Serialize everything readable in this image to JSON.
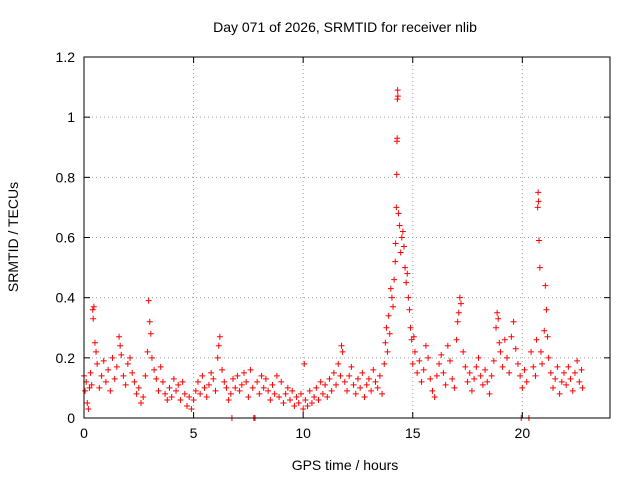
{
  "chart_data": {
    "type": "scatter",
    "title": "Day 071 of 2026, SRMTID for receiver nlib",
    "xlabel": "GPS time / hours",
    "ylabel": "SRMTID / TECUs",
    "xlim": [
      0,
      24
    ],
    "ylim": [
      0,
      1.2
    ],
    "x_ticks": [
      0,
      5,
      10,
      15,
      20
    ],
    "x_tick_labels": [
      "0",
      "5",
      "10",
      "15",
      "20"
    ],
    "y_ticks": [
      0,
      0.2,
      0.4,
      0.6,
      0.8,
      1.0,
      1.2
    ],
    "y_tick_labels": [
      "0",
      "0.2",
      "0.4",
      "0.6",
      "0.8",
      "1",
      "1.2"
    ],
    "grid": true,
    "marker": "plus",
    "series": [
      {
        "name": "SRMTID",
        "color": "#ff0000",
        "points": [
          [
            0.0,
            0.14
          ],
          [
            0.05,
            0.09
          ],
          [
            0.1,
            0.12
          ],
          [
            0.15,
            0.05
          ],
          [
            0.2,
            0.03
          ],
          [
            0.25,
            0.1
          ],
          [
            0.3,
            0.15
          ],
          [
            0.35,
            0.11
          ],
          [
            0.4,
            0.36
          ],
          [
            0.42,
            0.33
          ],
          [
            0.45,
            0.37
          ],
          [
            0.5,
            0.25
          ],
          [
            0.55,
            0.22
          ],
          [
            0.6,
            0.18
          ],
          [
            0.7,
            0.1
          ],
          [
            0.8,
            0.14
          ],
          [
            0.9,
            0.19
          ],
          [
            1.0,
            0.12
          ],
          [
            1.1,
            0.16
          ],
          [
            1.2,
            0.09
          ],
          [
            1.3,
            0.2
          ],
          [
            1.4,
            0.13
          ],
          [
            1.5,
            0.17
          ],
          [
            1.6,
            0.27
          ],
          [
            1.65,
            0.24
          ],
          [
            1.7,
            0.21
          ],
          [
            1.8,
            0.14
          ],
          [
            1.9,
            0.11
          ],
          [
            2.0,
            0.18
          ],
          [
            2.1,
            0.2
          ],
          [
            2.2,
            0.15
          ],
          [
            2.3,
            0.12
          ],
          [
            2.4,
            0.08
          ],
          [
            2.5,
            0.1
          ],
          [
            2.6,
            0.05
          ],
          [
            2.7,
            0.07
          ],
          [
            2.8,
            0.14
          ],
          [
            2.9,
            0.22
          ],
          [
            2.95,
            0.39
          ],
          [
            3.0,
            0.32
          ],
          [
            3.05,
            0.28
          ],
          [
            3.1,
            0.2
          ],
          [
            3.2,
            0.16
          ],
          [
            3.3,
            0.13
          ],
          [
            3.4,
            0.09
          ],
          [
            3.5,
            0.17
          ],
          [
            3.6,
            0.12
          ],
          [
            3.7,
            0.08
          ],
          [
            3.8,
            0.06
          ],
          [
            3.9,
            0.1
          ],
          [
            4.0,
            0.07
          ],
          [
            4.1,
            0.13
          ],
          [
            4.2,
            0.09
          ],
          [
            4.3,
            0.11
          ],
          [
            4.4,
            0.06
          ],
          [
            4.5,
            0.12
          ],
          [
            4.6,
            0.08
          ],
          [
            4.7,
            0.04
          ],
          [
            4.8,
            0.07
          ],
          [
            4.9,
            0.03
          ],
          [
            5.0,
            0.06
          ],
          [
            5.1,
            0.09
          ],
          [
            5.2,
            0.12
          ],
          [
            5.3,
            0.08
          ],
          [
            5.4,
            0.14
          ],
          [
            5.5,
            0.1
          ],
          [
            5.6,
            0.07
          ],
          [
            5.7,
            0.11
          ],
          [
            5.8,
            0.15
          ],
          [
            5.9,
            0.13
          ],
          [
            6.0,
            0.09
          ],
          [
            6.1,
            0.2
          ],
          [
            6.15,
            0.24
          ],
          [
            6.2,
            0.27
          ],
          [
            6.3,
            0.16
          ],
          [
            6.4,
            0.12
          ],
          [
            6.5,
            0.1
          ],
          [
            6.6,
            0.06
          ],
          [
            6.7,
            0.08
          ],
          [
            6.75,
            0.0
          ],
          [
            6.8,
            0.13
          ],
          [
            6.9,
            0.1
          ],
          [
            7.0,
            0.14
          ],
          [
            7.1,
            0.09
          ],
          [
            7.2,
            0.11
          ],
          [
            7.3,
            0.15
          ],
          [
            7.4,
            0.12
          ],
          [
            7.5,
            0.07
          ],
          [
            7.6,
            0.16
          ],
          [
            7.7,
            0.1
          ],
          [
            7.75,
            0.0
          ],
          [
            7.8,
            0.0
          ],
          [
            7.9,
            0.12
          ],
          [
            8.0,
            0.08
          ],
          [
            8.1,
            0.14
          ],
          [
            8.2,
            0.1
          ],
          [
            8.3,
            0.13
          ],
          [
            8.4,
            0.09
          ],
          [
            8.5,
            0.06
          ],
          [
            8.6,
            0.11
          ],
          [
            8.7,
            0.08
          ],
          [
            8.8,
            0.14
          ],
          [
            8.9,
            0.07
          ],
          [
            9.0,
            0.12
          ],
          [
            9.1,
            0.05
          ],
          [
            9.2,
            0.08
          ],
          [
            9.3,
            0.1
          ],
          [
            9.4,
            0.06
          ],
          [
            9.5,
            0.09
          ],
          [
            9.6,
            0.04
          ],
          [
            9.7,
            0.07
          ],
          [
            9.8,
            0.05
          ],
          [
            9.9,
            0.08
          ],
          [
            10.0,
            0.03
          ],
          [
            10.05,
            0.18
          ],
          [
            10.1,
            0.06
          ],
          [
            10.2,
            0.04
          ],
          [
            10.3,
            0.09
          ],
          [
            10.4,
            0.05
          ],
          [
            10.5,
            0.07
          ],
          [
            10.6,
            0.1
          ],
          [
            10.7,
            0.06
          ],
          [
            10.8,
            0.12
          ],
          [
            10.9,
            0.08
          ],
          [
            11.0,
            0.11
          ],
          [
            11.1,
            0.07
          ],
          [
            11.2,
            0.13
          ],
          [
            11.3,
            0.09
          ],
          [
            11.4,
            0.15
          ],
          [
            11.5,
            0.11
          ],
          [
            11.6,
            0.18
          ],
          [
            11.7,
            0.14
          ],
          [
            11.75,
            0.24
          ],
          [
            11.8,
            0.22
          ],
          [
            11.9,
            0.12
          ],
          [
            12.0,
            0.09
          ],
          [
            12.1,
            0.14
          ],
          [
            12.2,
            0.17
          ],
          [
            12.3,
            0.11
          ],
          [
            12.4,
            0.08
          ],
          [
            12.5,
            0.13
          ],
          [
            12.6,
            0.1
          ],
          [
            12.7,
            0.15
          ],
          [
            12.8,
            0.07
          ],
          [
            12.9,
            0.11
          ],
          [
            13.0,
            0.13
          ],
          [
            13.1,
            0.09
          ],
          [
            13.2,
            0.16
          ],
          [
            13.3,
            0.12
          ],
          [
            13.4,
            0.1
          ],
          [
            13.5,
            0.14
          ],
          [
            13.6,
            0.08
          ],
          [
            13.7,
            0.18
          ],
          [
            13.75,
            0.25
          ],
          [
            13.8,
            0.3
          ],
          [
            13.85,
            0.22
          ],
          [
            13.9,
            0.34
          ],
          [
            13.95,
            0.28
          ],
          [
            14.0,
            0.43
          ],
          [
            14.05,
            0.4
          ],
          [
            14.1,
            0.37
          ],
          [
            14.15,
            0.46
          ],
          [
            14.2,
            0.52
          ],
          [
            14.22,
            0.58
          ],
          [
            14.25,
            0.7
          ],
          [
            14.27,
            0.81
          ],
          [
            14.28,
            0.92
          ],
          [
            14.29,
            0.93
          ],
          [
            14.3,
            1.06
          ],
          [
            14.31,
            1.09
          ],
          [
            14.32,
            1.07
          ],
          [
            14.35,
            0.68
          ],
          [
            14.4,
            0.64
          ],
          [
            14.45,
            0.55
          ],
          [
            14.5,
            0.6
          ],
          [
            14.55,
            0.62
          ],
          [
            14.6,
            0.57
          ],
          [
            14.65,
            0.5
          ],
          [
            14.7,
            0.45
          ],
          [
            14.75,
            0.48
          ],
          [
            14.8,
            0.4
          ],
          [
            14.85,
            0.36
          ],
          [
            14.9,
            0.3
          ],
          [
            14.95,
            0.26
          ],
          [
            15.0,
            0.18
          ],
          [
            15.05,
            0.27
          ],
          [
            15.1,
            0.22
          ],
          [
            15.2,
            0.15
          ],
          [
            15.3,
            0.19
          ],
          [
            15.4,
            0.12
          ],
          [
            15.5,
            0.16
          ],
          [
            15.6,
            0.24
          ],
          [
            15.7,
            0.2
          ],
          [
            15.8,
            0.13
          ],
          [
            15.9,
            0.09
          ],
          [
            16.0,
            0.07
          ],
          [
            16.1,
            0.14
          ],
          [
            16.2,
            0.18
          ],
          [
            16.3,
            0.21
          ],
          [
            16.4,
            0.15
          ],
          [
            16.5,
            0.11
          ],
          [
            16.6,
            0.24
          ],
          [
            16.7,
            0.19
          ],
          [
            16.8,
            0.13
          ],
          [
            16.9,
            0.1
          ],
          [
            17.0,
            0.26
          ],
          [
            17.05,
            0.32
          ],
          [
            17.1,
            0.35
          ],
          [
            17.15,
            0.4
          ],
          [
            17.2,
            0.38
          ],
          [
            17.3,
            0.22
          ],
          [
            17.4,
            0.17
          ],
          [
            17.5,
            0.12
          ],
          [
            17.6,
            0.15
          ],
          [
            17.7,
            0.09
          ],
          [
            17.8,
            0.13
          ],
          [
            17.9,
            0.17
          ],
          [
            18.0,
            0.2
          ],
          [
            18.1,
            0.14
          ],
          [
            18.2,
            0.11
          ],
          [
            18.3,
            0.16
          ],
          [
            18.4,
            0.12
          ],
          [
            18.5,
            0.08
          ],
          [
            18.6,
            0.14
          ],
          [
            18.7,
            0.19
          ],
          [
            18.8,
            0.3
          ],
          [
            18.85,
            0.35
          ],
          [
            18.9,
            0.33
          ],
          [
            18.95,
            0.25
          ],
          [
            19.0,
            0.22
          ],
          [
            19.1,
            0.17
          ],
          [
            19.2,
            0.26
          ],
          [
            19.3,
            0.2
          ],
          [
            19.4,
            0.15
          ],
          [
            19.5,
            0.27
          ],
          [
            19.6,
            0.32
          ],
          [
            19.7,
            0.23
          ],
          [
            19.8,
            0.18
          ],
          [
            19.9,
            0.14
          ],
          [
            19.95,
            0.0
          ],
          [
            20.0,
            0.1
          ],
          [
            20.1,
            0.16
          ],
          [
            20.2,
            0.12
          ],
          [
            20.3,
            0.0
          ],
          [
            20.4,
            0.22
          ],
          [
            20.5,
            0.17
          ],
          [
            20.6,
            0.14
          ],
          [
            20.65,
            0.26
          ],
          [
            20.7,
            0.7
          ],
          [
            20.72,
            0.75
          ],
          [
            20.74,
            0.72
          ],
          [
            20.76,
            0.59
          ],
          [
            20.8,
            0.5
          ],
          [
            20.85,
            0.22
          ],
          [
            20.9,
            0.18
          ],
          [
            21.0,
            0.29
          ],
          [
            21.05,
            0.44
          ],
          [
            21.1,
            0.36
          ],
          [
            21.15,
            0.27
          ],
          [
            21.2,
            0.2
          ],
          [
            21.3,
            0.15
          ],
          [
            21.4,
            0.1
          ],
          [
            21.5,
            0.13
          ],
          [
            21.6,
            0.17
          ],
          [
            21.7,
            0.08
          ],
          [
            21.8,
            0.12
          ],
          [
            21.9,
            0.15
          ],
          [
            22.0,
            0.11
          ],
          [
            22.1,
            0.17
          ],
          [
            22.2,
            0.13
          ],
          [
            22.3,
            0.09
          ],
          [
            22.4,
            0.15
          ],
          [
            22.5,
            0.19
          ],
          [
            22.6,
            0.12
          ],
          [
            22.7,
            0.16
          ],
          [
            22.75,
            0.1
          ]
        ]
      }
    ]
  }
}
